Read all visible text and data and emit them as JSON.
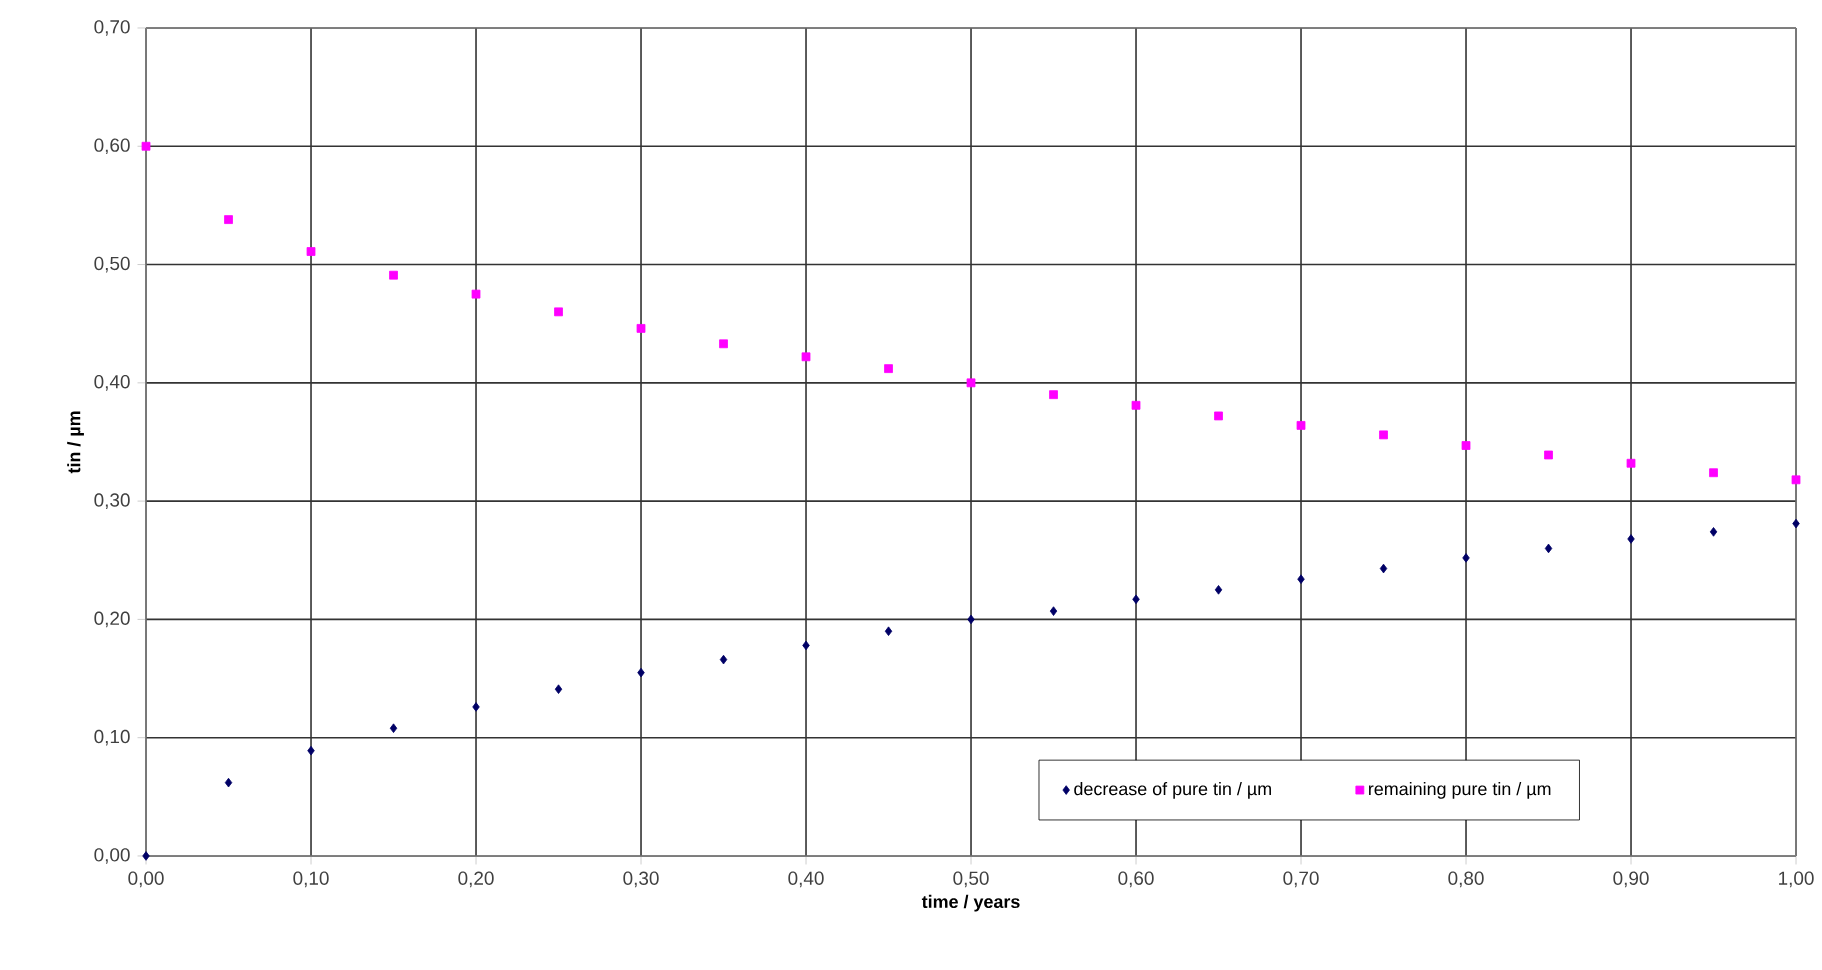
{
  "chart_data": {
    "type": "scatter",
    "xlabel": "time / years",
    "ylabel": "tin / µm",
    "x": [
      0,
      0.05,
      0.1,
      0.15,
      0.2,
      0.25,
      0.3,
      0.35,
      0.4,
      0.45,
      0.5,
      0.55,
      0.6,
      0.65,
      0.7,
      0.75,
      0.8,
      0.85,
      0.9,
      0.95,
      1.0
    ],
    "series": [
      {
        "name": "decrease of pure tin / µm",
        "color": "#000066",
        "marker": "diamond",
        "values": [
          0,
          0.062,
          0.089,
          0.108,
          0.126,
          0.141,
          0.155,
          0.166,
          0.178,
          0.19,
          0.2,
          0.207,
          0.217,
          0.225,
          0.234,
          0.243,
          0.252,
          0.26,
          0.268,
          0.274,
          0.281
        ]
      },
      {
        "name": "remaining pure tin / µm",
        "color": "#ff00ff",
        "marker": "square",
        "values": [
          0.6,
          0.538,
          0.511,
          0.491,
          0.475,
          0.46,
          0.446,
          0.433,
          0.422,
          0.412,
          0.4,
          0.39,
          0.381,
          0.372,
          0.364,
          0.356,
          0.347,
          0.339,
          0.332,
          0.324,
          0.318
        ]
      }
    ],
    "xlim": [
      0,
      1
    ],
    "ylim": [
      0,
      0.7
    ],
    "xticks": [
      {
        "value": 0,
        "label": "0,00"
      },
      {
        "value": 0.1,
        "label": "0,10"
      },
      {
        "value": 0.2,
        "label": "0,20"
      },
      {
        "value": 0.3,
        "label": "0,30"
      },
      {
        "value": 0.4,
        "label": "0,40"
      },
      {
        "value": 0.5,
        "label": "0,50"
      },
      {
        "value": 0.6,
        "label": "0,60"
      },
      {
        "value": 0.7,
        "label": "0,70"
      },
      {
        "value": 0.8,
        "label": "0,80"
      },
      {
        "value": 0.9,
        "label": "0,90"
      },
      {
        "value": 1.0,
        "label": "1,00"
      }
    ],
    "yticks": [
      {
        "value": 0,
        "label": "0,00"
      },
      {
        "value": 0.1,
        "label": "0,10"
      },
      {
        "value": 0.2,
        "label": "0,20"
      },
      {
        "value": 0.3,
        "label": "0,30"
      },
      {
        "value": 0.4,
        "label": "0,40"
      },
      {
        "value": 0.5,
        "label": "0,50"
      },
      {
        "value": 0.6,
        "label": "0,60"
      },
      {
        "value": 0.7,
        "label": "0,70"
      }
    ],
    "grid": true,
    "legend": "bottom right"
  }
}
